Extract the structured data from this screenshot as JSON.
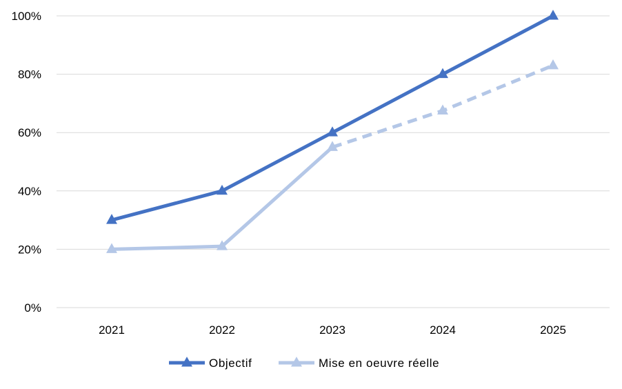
{
  "chart_data": {
    "type": "line",
    "categories": [
      "2021",
      "2022",
      "2023",
      "2024",
      "2025"
    ],
    "ylim": [
      0,
      100
    ],
    "yticks": [
      0,
      20,
      40,
      60,
      80,
      100
    ],
    "ytick_labels": [
      "0%",
      "20%",
      "40%",
      "60%",
      "80%",
      "100%"
    ],
    "grid": true,
    "legend_position": "bottom",
    "title": "",
    "xlabel": "",
    "ylabel": "",
    "series": [
      {
        "name": "Objectif",
        "values": [
          30,
          40,
          60,
          80,
          100
        ],
        "color": "#4472c4",
        "marker": "triangle",
        "dashed_from_index": null
      },
      {
        "name": "Mise en oeuvre réelle",
        "values": [
          20,
          21,
          55,
          67.5,
          83
        ],
        "color": "#b4c7e7",
        "marker": "triangle",
        "dashed_from_index": 2
      }
    ]
  }
}
